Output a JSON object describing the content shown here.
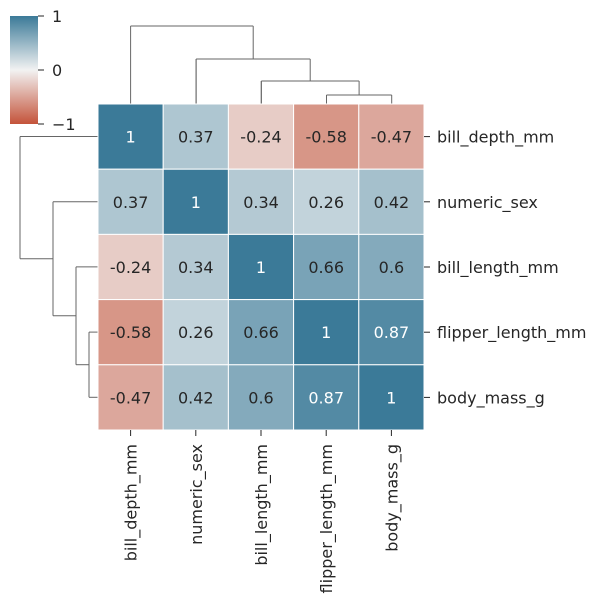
{
  "chart_data": {
    "type": "heatmap",
    "title": "",
    "row_labels": [
      "bill_depth_mm",
      "numeric_sex",
      "bill_length_mm",
      "flipper_length_mm",
      "body_mass_g"
    ],
    "col_labels": [
      "bill_depth_mm",
      "numeric_sex",
      "bill_length_mm",
      "flipper_length_mm",
      "body_mass_g"
    ],
    "values": [
      [
        1,
        0.37,
        -0.24,
        -0.58,
        -0.47
      ],
      [
        0.37,
        1,
        0.34,
        0.26,
        0.42
      ],
      [
        -0.24,
        0.34,
        1,
        0.66,
        0.6
      ],
      [
        -0.58,
        0.26,
        0.66,
        1,
        0.87
      ],
      [
        -0.47,
        0.42,
        0.6,
        0.87,
        1
      ]
    ],
    "cell_labels": [
      [
        "1",
        "0.37",
        "-0.24",
        "-0.58",
        "-0.47"
      ],
      [
        "0.37",
        "1",
        "0.34",
        "0.26",
        "0.42"
      ],
      [
        "-0.24",
        "0.34",
        "1",
        "0.66",
        "0.6"
      ],
      [
        "-0.58",
        "0.26",
        "0.66",
        "1",
        "0.87"
      ],
      [
        "-0.47",
        "0.42",
        "0.6",
        "0.87",
        "1"
      ]
    ],
    "colorbar": {
      "vmin": -1,
      "vmax": 1,
      "ticks": [
        1,
        0,
        -1
      ],
      "tick_labels": [
        "1",
        "0",
        "−1"
      ],
      "colors": {
        "low": "#c4533a",
        "mid": "#f2f2f2",
        "high": "#3b7a98"
      }
    },
    "dendrogram": {
      "row": true,
      "col": true
    },
    "grid": false
  }
}
